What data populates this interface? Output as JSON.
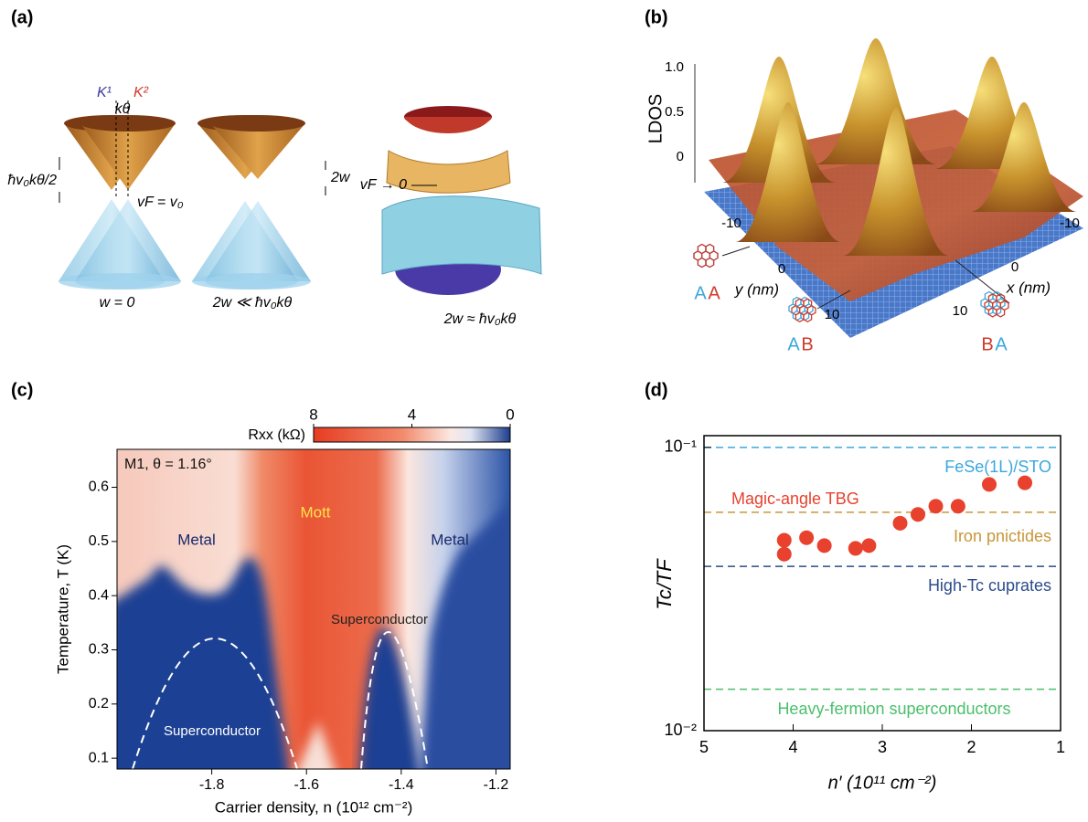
{
  "panel_labels": [
    "(a)",
    "(b)",
    "(c)",
    "(d)"
  ],
  "panel_a": {
    "k1": "K¹",
    "k2": "K²",
    "k_theta": "kθ",
    "gap_label": "ħv₀kθ/2",
    "vf_label": "vF = v₀",
    "w_label": "2w",
    "vf_zero": "vF → 0",
    "captions": [
      "w = 0",
      "2w ≪ ħv₀kθ",
      "2w ≈ ħv₀kθ"
    ]
  },
  "panel_b": {
    "z_label": "LDOS",
    "z_ticks": [
      0,
      0.5,
      {
        "value": 1,
        "label": "1.0"
      }
    ],
    "y_label": "y (nm)",
    "y_ticks": [
      -10,
      0,
      10
    ],
    "x_label": "x (nm)",
    "x_ticks": [
      -10,
      0,
      10
    ],
    "stackings": [
      [
        "A",
        "A"
      ],
      [
        "A",
        "B"
      ],
      [
        "B",
        "A"
      ]
    ]
  },
  "chart_data": [
    {
      "type": "heatmap",
      "colorbar_label": "Rxx (kΩ)",
      "clim": [
        8,
        0
      ],
      "cticks": [
        8,
        4,
        0
      ],
      "xlabel": "Carrier density, n (10¹² cm⁻²)",
      "ylabel": "Temperature, T (K)",
      "xlim": [
        -2.0,
        -1.17
      ],
      "xticks": [
        -1.8,
        -1.6,
        -1.4,
        -1.2
      ],
      "ylim": [
        0.08,
        0.67
      ],
      "yticks": [
        0.1,
        0.2,
        0.3,
        0.4,
        0.5,
        0.6
      ],
      "annotations": [
        "M1, θ = 1.16°",
        "Metal",
        "Mott",
        "Metal",
        "Superconductor",
        "Superconductor"
      ]
    },
    {
      "type": "scatter",
      "xlabel": "n′ (10¹¹ cm⁻²)",
      "ylabel": "Tc/TF",
      "xlim": [
        5,
        1
      ],
      "xticks": [
        5,
        4,
        3,
        2,
        1
      ],
      "ylim": [
        0.01,
        0.11
      ],
      "ylog": true,
      "yticks": [
        {
          "value": 0.01,
          "label": "10⁻²"
        },
        {
          "value": 0.1,
          "label": "10⁻¹"
        }
      ],
      "series": [
        {
          "name": "Magic-angle TBG",
          "color": "#e8412e",
          "x": [
            4.1,
            4.1,
            3.85,
            3.65,
            3.3,
            3.15,
            2.8,
            2.6,
            2.4,
            2.15,
            1.8,
            1.4
          ],
          "values": [
            0.047,
            0.042,
            0.048,
            0.045,
            0.044,
            0.045,
            0.054,
            0.058,
            0.062,
            0.062,
            0.074,
            0.075
          ]
        }
      ],
      "reference_lines": [
        {
          "name": "FeSe(1L)/STO",
          "value": 0.1,
          "color": "#3aa7dc"
        },
        {
          "name": "Iron pnictides",
          "value": 0.059,
          "color": "#c8963a"
        },
        {
          "name": "High-Tc cuprates",
          "value": 0.038,
          "color": "#2b4c8c"
        },
        {
          "name": "Heavy-fermion superconductors",
          "value": 0.014,
          "color": "#4bbf6b"
        }
      ]
    }
  ]
}
